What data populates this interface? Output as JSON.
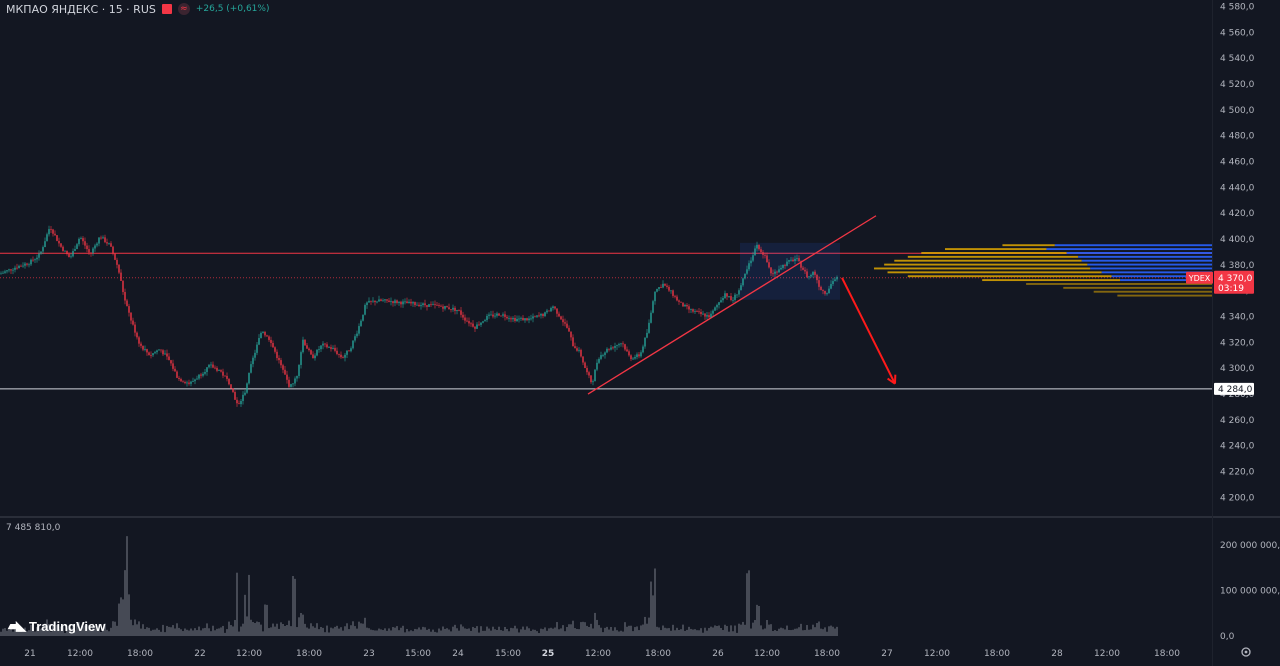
{
  "header": {
    "title": "МКПАО ЯНДЕКС · 15 · RUS",
    "change": "+26,5 (+0,61%)",
    "colors": {
      "up": "#26a69a",
      "down": "#f23645",
      "flag": "#f23645"
    }
  },
  "volume": {
    "max_label": "7 485 810,0"
  },
  "brand": {
    "name": "TradingView",
    "icon": "tradingview-logo-icon"
  },
  "price_tag": {
    "symbol": "YDEX",
    "price": "4 370,0",
    "countdown": "03:19",
    "color": "#f23645"
  },
  "level_tag": {
    "price": "4 284,0"
  },
  "settings_icon": "gear-icon",
  "chart_data": {
    "type": "candlestick",
    "interval": "15",
    "price_axis": {
      "range": [
        4190,
        4590
      ],
      "ticks": [
        4580,
        4560,
        4540,
        4520,
        4500,
        4480,
        4460,
        4440,
        4420,
        4400,
        4380,
        4360,
        4340,
        4320,
        4300,
        4280,
        4260,
        4240,
        4220,
        4200
      ],
      "tick_labels": [
        "4 580,0",
        "4 560,0",
        "4 540,0",
        "4 520,0",
        "4 500,0",
        "4 480,0",
        "4 460,0",
        "4 440,0",
        "4 420,0",
        "4 400,0",
        "4 380,0",
        "4 360,0",
        "4 340,0",
        "4 320,0",
        "4 300,0",
        "4 280,0",
        "4 260,0",
        "4 240,0",
        "4 220,0",
        "4 200,0"
      ]
    },
    "volume_axis": {
      "range": [
        0,
        260000000
      ],
      "ticks": [
        200000000,
        100000000,
        0
      ],
      "tick_labels": [
        "200 000 000,0",
        "100 000 000,0",
        "0,0"
      ]
    },
    "time_axis": {
      "labels": [
        "21",
        "12:00",
        "18:00",
        "22",
        "12:00",
        "18:00",
        "23",
        "15:00",
        "24",
        "15:00",
        "25",
        "12:00",
        "18:00",
        "26",
        "12:00",
        "18:00",
        "27",
        "12:00",
        "18:00",
        "28",
        "12:00",
        "18:00"
      ],
      "bold": [
        false,
        false,
        false,
        false,
        false,
        false,
        false,
        false,
        false,
        false,
        true,
        false,
        false,
        false,
        false,
        false,
        false,
        false,
        false,
        false,
        false,
        false
      ]
    },
    "close_path": [
      [
        0,
        4373
      ],
      [
        15,
        4378
      ],
      [
        30,
        4382
      ],
      [
        40,
        4388
      ],
      [
        50,
        4410
      ],
      [
        60,
        4395
      ],
      [
        70,
        4385
      ],
      [
        80,
        4402
      ],
      [
        90,
        4388
      ],
      [
        100,
        4402
      ],
      [
        110,
        4395
      ],
      [
        118,
        4378
      ],
      [
        125,
        4352
      ],
      [
        132,
        4335
      ],
      [
        140,
        4318
      ],
      [
        150,
        4310
      ],
      [
        160,
        4315
      ],
      [
        170,
        4305
      ],
      [
        178,
        4292
      ],
      [
        190,
        4288
      ],
      [
        200,
        4295
      ],
      [
        210,
        4302
      ],
      [
        220,
        4298
      ],
      [
        230,
        4288
      ],
      [
        238,
        4270
      ],
      [
        245,
        4282
      ],
      [
        252,
        4305
      ],
      [
        262,
        4330
      ],
      [
        272,
        4318
      ],
      [
        282,
        4300
      ],
      [
        290,
        4285
      ],
      [
        297,
        4295
      ],
      [
        303,
        4322
      ],
      [
        312,
        4308
      ],
      [
        322,
        4318
      ],
      [
        333,
        4315
      ],
      [
        342,
        4308
      ],
      [
        350,
        4315
      ],
      [
        358,
        4330
      ],
      [
        366,
        4350
      ],
      [
        375,
        4352
      ],
      [
        390,
        4352
      ],
      [
        410,
        4350
      ],
      [
        440,
        4348
      ],
      [
        458,
        4345
      ],
      [
        465,
        4338
      ],
      [
        475,
        4332
      ],
      [
        488,
        4340
      ],
      [
        500,
        4342
      ],
      [
        515,
        4338
      ],
      [
        530,
        4338
      ],
      [
        545,
        4342
      ],
      [
        553,
        4348
      ],
      [
        560,
        4340
      ],
      [
        568,
        4330
      ],
      [
        573,
        4318
      ],
      [
        580,
        4312
      ],
      [
        586,
        4298
      ],
      [
        592,
        4288
      ],
      [
        598,
        4308
      ],
      [
        608,
        4315
      ],
      [
        622,
        4320
      ],
      [
        630,
        4308
      ],
      [
        640,
        4310
      ],
      [
        648,
        4330
      ],
      [
        655,
        4360
      ],
      [
        663,
        4365
      ],
      [
        672,
        4358
      ],
      [
        680,
        4350
      ],
      [
        690,
        4345
      ],
      [
        700,
        4342
      ],
      [
        710,
        4340
      ],
      [
        718,
        4350
      ],
      [
        725,
        4358
      ],
      [
        732,
        4352
      ],
      [
        740,
        4362
      ],
      [
        748,
        4378
      ],
      [
        756,
        4395
      ],
      [
        764,
        4388
      ],
      [
        772,
        4372
      ],
      [
        780,
        4378
      ],
      [
        788,
        4382
      ],
      [
        796,
        4385
      ],
      [
        802,
        4378
      ],
      [
        808,
        4370
      ],
      [
        814,
        4375
      ],
      [
        820,
        4362
      ],
      [
        826,
        4358
      ],
      [
        833,
        4368
      ],
      [
        838,
        4370
      ]
    ],
    "volume_profile": {
      "up_color": "#2962ff",
      "down_color": "#e0a800",
      "levels": [
        4395,
        4392,
        4389,
        4386,
        4383,
        4380,
        4377,
        4374,
        4371,
        4368,
        4365,
        4362,
        4359,
        4356
      ],
      "total": [
        0.62,
        0.79,
        0.86,
        0.9,
        0.94,
        0.97,
        1.0,
        0.96,
        0.9,
        0.68,
        0.55,
        0.44,
        0.35,
        0.28
      ],
      "up_fraction": [
        0.75,
        0.62,
        0.5,
        0.44,
        0.41,
        0.38,
        0.36,
        0.34,
        0.33,
        0.4,
        0.0,
        0.0,
        0.0,
        0.0
      ]
    },
    "annotations": {
      "resistance_level": 4389,
      "current_price_line": 4370,
      "support_level": 4284,
      "trendline": {
        "from": {
          "bar_x": 588,
          "price": 4280
        },
        "to": {
          "bar_x": 876,
          "price": 4418
        }
      },
      "consolidation_box": {
        "x_from": 740,
        "x_to": 840,
        "price_from": 4353,
        "price_to": 4397
      },
      "forecast_arrow": {
        "from": {
          "bar_x": 842,
          "price": 4370
        },
        "to": {
          "bar_x": 895,
          "price": 4288
        }
      }
    }
  }
}
